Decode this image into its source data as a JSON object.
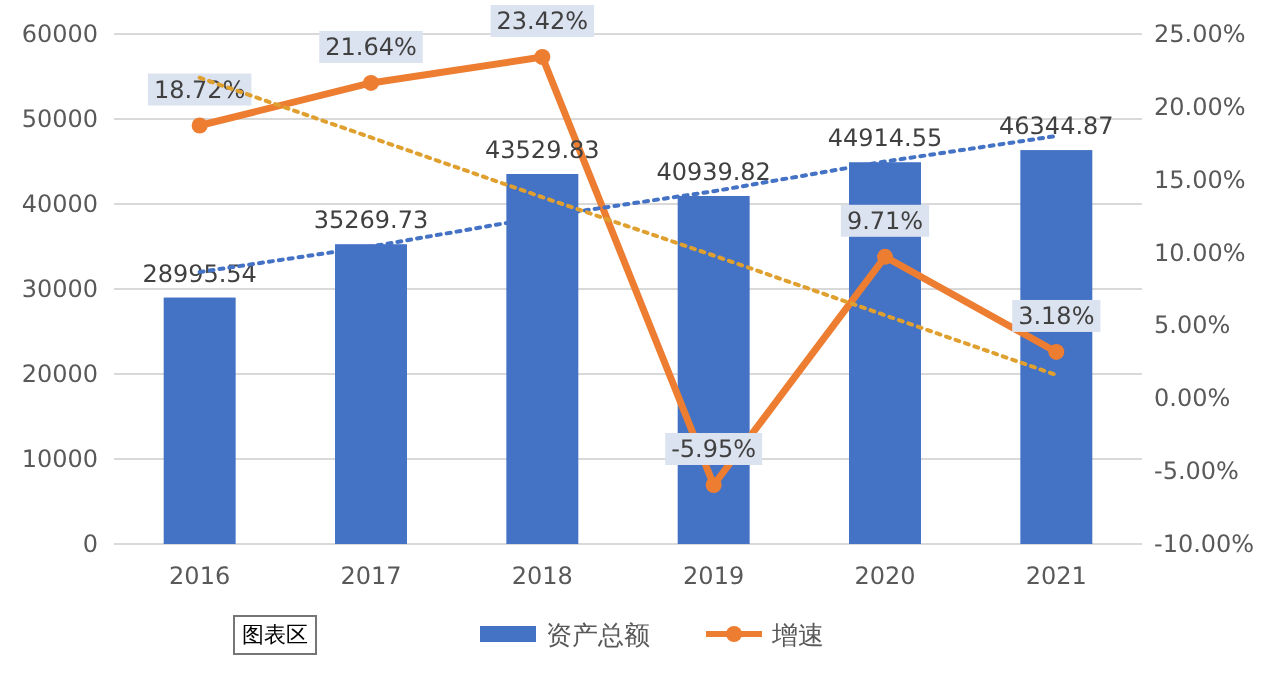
{
  "chart_data": {
    "type": "bar",
    "categories": [
      "2016",
      "2017",
      "2018",
      "2019",
      "2020",
      "2021"
    ],
    "series": [
      {
        "name": "资产总额",
        "color": "#4472c4",
        "values": [
          28995.54,
          35269.73,
          43529.83,
          40939.82,
          44914.55,
          46344.87
        ],
        "value_labels": [
          "28995.54",
          "35269.73",
          "43529.83",
          "40939.82",
          "44914.55",
          "46344.87"
        ]
      },
      {
        "name": "增速",
        "type": "line",
        "axis": "y2",
        "color": "#ed7d31",
        "marker": "circle",
        "values": [
          18.72,
          21.64,
          23.42,
          -5.95,
          9.71,
          3.18
        ],
        "value_labels": [
          "18.72%",
          "21.64%",
          "23.42%",
          "-5.95%",
          "9.71%",
          "3.18%"
        ]
      },
      {
        "type": "line",
        "color": "#4472c4",
        "line_style": "dotted",
        "values": [
          32000,
          35000,
          38500,
          41500,
          45000,
          48000
        ]
      },
      {
        "type": "line",
        "axis": "y2",
        "color": "#e0a030",
        "line_style": "dotted",
        "values": [
          22.0,
          17.9,
          13.8,
          9.8,
          5.7,
          1.6
        ]
      }
    ],
    "ylim": [
      0,
      60000
    ],
    "yticks": [
      0,
      10000,
      20000,
      30000,
      40000,
      50000,
      60000
    ],
    "y2lim": [
      -10,
      25
    ],
    "y2ticks": [
      {
        "value": -10,
        "label": "-10.00%"
      },
      {
        "value": -5,
        "label": "-5.00%"
      },
      {
        "value": 0,
        "label": "0.00%"
      },
      {
        "value": 5,
        "label": "5.00%"
      },
      {
        "value": 10,
        "label": "10.00%"
      },
      {
        "value": 15,
        "label": "15.00%"
      },
      {
        "value": 20,
        "label": "20.00%"
      },
      {
        "value": 25,
        "label": "25.00%"
      }
    ],
    "grid": "y",
    "legend": "bottom",
    "annotations": [
      "图表区"
    ]
  }
}
